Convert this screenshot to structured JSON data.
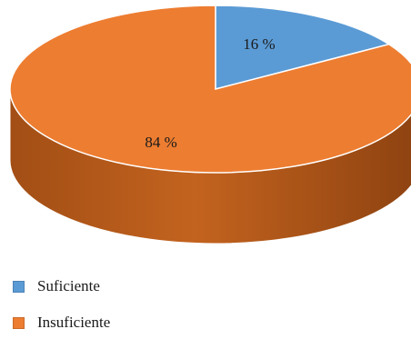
{
  "chart_data": {
    "type": "pie",
    "style": "3d",
    "categories": [
      "Suficiente",
      "Insuficiente"
    ],
    "values": [
      16,
      84
    ],
    "data_labels": [
      "16 %",
      "84 %"
    ],
    "colors": [
      "#5b9bd5",
      "#ed7d31"
    ],
    "legend": {
      "placement": "bottom-left"
    }
  },
  "legend": {
    "items": [
      {
        "label": "Suficiente",
        "color": "#5b9bd5"
      },
      {
        "label": "Insuficiente",
        "color": "#ed7d31"
      }
    ]
  }
}
